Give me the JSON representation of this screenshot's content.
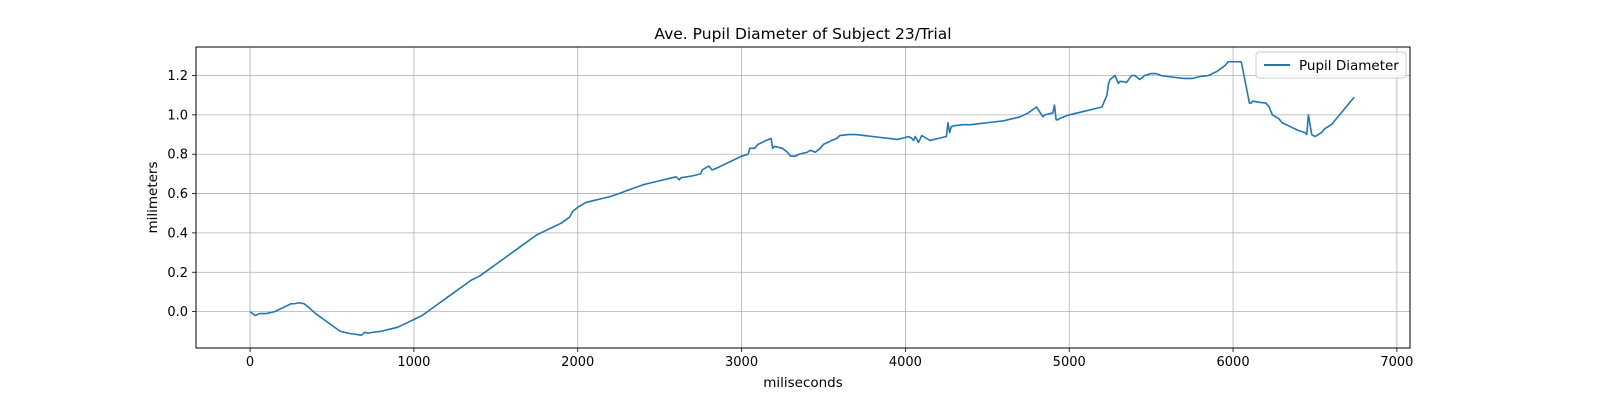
{
  "chart_data": {
    "type": "line",
    "title": "Ave. Pupil Diameter of Subject 23/Trial",
    "xlabel": "miliseconds",
    "ylabel": "milimeters",
    "xlim": [
      -330,
      7080
    ],
    "ylim": [
      -0.185,
      1.345
    ],
    "xticks": [
      0,
      1000,
      2000,
      3000,
      4000,
      5000,
      6000,
      7000
    ],
    "xtick_labels": [
      "0",
      "1000",
      "2000",
      "3000",
      "4000",
      "5000",
      "6000",
      "7000"
    ],
    "yticks": [
      0.0,
      0.2,
      0.4,
      0.6,
      0.8,
      1.0,
      1.2
    ],
    "ytick_labels": [
      "0.0",
      "0.2",
      "0.4",
      "0.6",
      "0.8",
      "1.0",
      "1.2"
    ],
    "grid": true,
    "legend_position": "top-right",
    "colors": {
      "series": "#1f77b4",
      "grid": "#b0b0b0",
      "axes": "#000000"
    },
    "series": [
      {
        "name": "Pupil Diameter",
        "x": [
          0,
          30,
          60,
          100,
          150,
          200,
          250,
          270,
          300,
          330,
          360,
          400,
          450,
          500,
          550,
          600,
          640,
          680,
          700,
          720,
          750,
          800,
          850,
          900,
          950,
          1000,
          1050,
          1100,
          1150,
          1200,
          1250,
          1300,
          1350,
          1400,
          1450,
          1500,
          1550,
          1600,
          1650,
          1700,
          1750,
          1800,
          1850,
          1900,
          1950,
          1970,
          2000,
          2050,
          2100,
          2150,
          2200,
          2250,
          2300,
          2350,
          2400,
          2450,
          2500,
          2550,
          2600,
          2620,
          2630,
          2700,
          2750,
          2760,
          2780,
          2800,
          2820,
          2850,
          2900,
          2950,
          3000,
          3040,
          3050,
          3080,
          3100,
          3150,
          3180,
          3190,
          3200,
          3250,
          3280,
          3300,
          3330,
          3350,
          3400,
          3420,
          3450,
          3480,
          3500,
          3550,
          3580,
          3600,
          3650,
          3700,
          3750,
          3800,
          3850,
          3900,
          3950,
          4000,
          4020,
          4040,
          4050,
          4060,
          4080,
          4100,
          4120,
          4150,
          4200,
          4250,
          4260,
          4270,
          4280,
          4300,
          4350,
          4400,
          4450,
          4500,
          4550,
          4600,
          4650,
          4700,
          4750,
          4800,
          4840,
          4850,
          4900,
          4910,
          4920,
          4930,
          4950,
          5000,
          5050,
          5100,
          5150,
          5200,
          5230,
          5240,
          5250,
          5280,
          5300,
          5310,
          5320,
          5350,
          5380,
          5400,
          5430,
          5460,
          5500,
          5530,
          5560,
          5600,
          5650,
          5700,
          5750,
          5800,
          5850,
          5900,
          5950,
          5960,
          5970,
          6000,
          6050,
          6100,
          6110,
          6120,
          6150,
          6200,
          6220,
          6240,
          6280,
          6300,
          6350,
          6400,
          6440,
          6450,
          6460,
          6480,
          6500,
          6520,
          6540,
          6560,
          6600,
          6650,
          6700,
          6740
        ],
        "y": [
          0.0,
          -0.02,
          -0.01,
          -0.01,
          0.0,
          0.02,
          0.04,
          0.04,
          0.045,
          0.04,
          0.02,
          -0.01,
          -0.04,
          -0.07,
          -0.1,
          -0.11,
          -0.115,
          -0.12,
          -0.105,
          -0.11,
          -0.105,
          -0.1,
          -0.09,
          -0.08,
          -0.06,
          -0.04,
          -0.02,
          0.01,
          0.04,
          0.07,
          0.1,
          0.13,
          0.16,
          0.18,
          0.21,
          0.24,
          0.27,
          0.3,
          0.33,
          0.36,
          0.39,
          0.41,
          0.43,
          0.45,
          0.48,
          0.51,
          0.53,
          0.555,
          0.565,
          0.575,
          0.585,
          0.6,
          0.615,
          0.63,
          0.645,
          0.655,
          0.665,
          0.675,
          0.685,
          0.67,
          0.68,
          0.69,
          0.7,
          0.72,
          0.73,
          0.74,
          0.72,
          0.73,
          0.75,
          0.77,
          0.79,
          0.8,
          0.83,
          0.83,
          0.85,
          0.87,
          0.88,
          0.83,
          0.84,
          0.83,
          0.81,
          0.79,
          0.79,
          0.8,
          0.81,
          0.82,
          0.81,
          0.83,
          0.85,
          0.87,
          0.88,
          0.895,
          0.9,
          0.9,
          0.895,
          0.89,
          0.885,
          0.88,
          0.875,
          0.885,
          0.89,
          0.88,
          0.87,
          0.89,
          0.86,
          0.895,
          0.885,
          0.87,
          0.88,
          0.89,
          0.96,
          0.91,
          0.94,
          0.945,
          0.95,
          0.95,
          0.955,
          0.96,
          0.965,
          0.97,
          0.98,
          0.99,
          1.01,
          1.04,
          0.99,
          1.0,
          1.01,
          1.05,
          0.975,
          0.975,
          0.985,
          1.0,
          1.01,
          1.02,
          1.03,
          1.04,
          1.1,
          1.16,
          1.18,
          1.2,
          1.16,
          1.17,
          1.17,
          1.165,
          1.2,
          1.2,
          1.18,
          1.2,
          1.21,
          1.21,
          1.2,
          1.195,
          1.19,
          1.185,
          1.185,
          1.195,
          1.2,
          1.22,
          1.25,
          1.26,
          1.27,
          1.27,
          1.27,
          1.06,
          1.06,
          1.07,
          1.065,
          1.06,
          1.04,
          1.0,
          0.98,
          0.96,
          0.94,
          0.92,
          0.91,
          0.9,
          1.0,
          0.9,
          0.89,
          0.9,
          0.91,
          0.93,
          0.95,
          1.0,
          1.05,
          1.09
        ]
      }
    ]
  }
}
